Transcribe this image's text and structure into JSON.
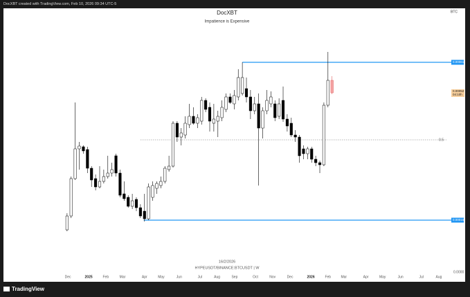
{
  "header": {
    "credit": "DocXBT created with TradingView.com, Feb 10, 2026 09:34 UTC-5",
    "logo": "TradingView"
  },
  "chart_data": {
    "type": "candlestick",
    "title": "DocXBT",
    "subtitle": "Impatience is Expensive",
    "symbol": "BTC",
    "date_note": "16/2/2026",
    "pair": "HYPEUSDT/BINANCE:BTCUSDT | W",
    "x": [
      0,
      1,
      2,
      3,
      4,
      5,
      6,
      7,
      8,
      9,
      10,
      11,
      12,
      13,
      14,
      15,
      16,
      17,
      18,
      19,
      20,
      21,
      22,
      23,
      24,
      25,
      26,
      27,
      28,
      29,
      30,
      31,
      32,
      33,
      34,
      35,
      36,
      37,
      38,
      39,
      40,
      41,
      42,
      43,
      44,
      45,
      46,
      47,
      48,
      49,
      50,
      51,
      52,
      53,
      54,
      55,
      56,
      57,
      58,
      59,
      60,
      61,
      62,
      63,
      64,
      65
    ],
    "open": [
      0.000122,
      0.000162,
      0.00027,
      0.000356,
      0.000362,
      0.000354,
      0.0003,
      0.00027,
      0.000246,
      0.000262,
      0.000276,
      0.000286,
      0.000336,
      0.000286,
      0.000226,
      0.000216,
      0.00019,
      0.00021,
      0.000186,
      0.000176,
      0.000154,
      0.000216,
      0.000242,
      0.00025,
      0.000262,
      0.000296,
      0.000306,
      0.00043,
      0.00039,
      0.000396,
      0.000426,
      0.00045,
      0.00043,
      0.000436,
      0.000496,
      0.000476,
      0.00043,
      0.000436,
      0.000446,
      0.00047,
      0.000506,
      0.000486,
      0.000506,
      0.000516,
      0.00053,
      0.000506,
      0.000466,
      0.000486,
      0.000416,
      0.000466,
      0.000486,
      0.000486,
      0.00045,
      0.000496,
      0.000442,
      0.00043,
      0.000396,
      0.00039,
      0.000356,
      0.000342,
      0.000356,
      0.000326,
      0.000316,
      0.00031,
      0.000482,
      0.000554
    ],
    "close": [
      0.000162,
      0.00027,
      0.000356,
      0.000364,
      0.00035,
      0.0003,
      0.000266,
      0.000246,
      0.000262,
      0.000276,
      0.000286,
      0.000296,
      0.000286,
      0.000222,
      0.000212,
      0.00019,
      0.000206,
      0.000186,
      0.000162,
      0.000154,
      0.000246,
      0.00025,
      0.000256,
      0.000262,
      0.0003,
      0.000306,
      0.00043,
      0.00039,
      0.000402,
      0.00043,
      0.00045,
      0.00043,
      0.000446,
      0.000496,
      0.00047,
      0.000436,
      0.000442,
      0.00045,
      0.000476,
      0.000506,
      0.00049,
      0.00051,
      0.000562,
      0.000562,
      0.000506,
      0.000466,
      0.000486,
      0.000416,
      0.000466,
      0.000496,
      0.000506,
      0.000446,
      0.000486,
      0.000442,
      0.000422,
      0.000396,
      0.00039,
      0.000336,
      0.000342,
      0.000356,
      0.000326,
      0.000316,
      0.00031,
      0.000482,
      0.000554,
      0.000518
    ],
    "high": [
      0.00017,
      0.000276,
      0.00049,
      0.000376,
      0.000366,
      0.000362,
      0.000306,
      0.000282,
      0.000306,
      0.000296,
      0.000336,
      0.000316,
      0.000342,
      0.000296,
      0.000262,
      0.000222,
      0.000226,
      0.000216,
      0.000196,
      0.000226,
      0.000256,
      0.000262,
      0.000262,
      0.000276,
      0.000306,
      0.000336,
      0.000436,
      0.000436,
      0.000416,
      0.00045,
      0.000486,
      0.000476,
      0.000456,
      0.000506,
      0.000502,
      0.00049,
      0.000486,
      0.000466,
      0.000496,
      0.000516,
      0.000516,
      0.000526,
      0.000586,
      0.000606,
      0.000562,
      0.000526,
      0.000506,
      0.000516,
      0.000476,
      0.000526,
      0.000522,
      0.000496,
      0.000502,
      0.000536,
      0.000456,
      0.000446,
      0.00041,
      0.000396,
      0.000366,
      0.000362,
      0.000362,
      0.000336,
      0.000322,
      0.00049,
      0.000636,
      0.000566
    ],
    "low": [
      0.000118,
      0.000156,
      0.000266,
      0.000296,
      0.000342,
      0.000286,
      0.000246,
      0.000236,
      0.000242,
      0.000256,
      0.00027,
      0.000276,
      0.000276,
      0.000216,
      0.000206,
      0.000186,
      0.000182,
      0.000176,
      0.000156,
      0.000146,
      0.00015,
      0.000206,
      0.000226,
      0.000242,
      0.000256,
      0.00029,
      0.000302,
      0.000376,
      0.000366,
      0.000386,
      0.000416,
      0.000426,
      0.000416,
      0.000426,
      0.000462,
      0.000406,
      0.000406,
      0.00039,
      0.000436,
      0.000462,
      0.000486,
      0.00047,
      0.000496,
      0.00051,
      0.00049,
      0.000442,
      0.000456,
      0.00025,
      0.000386,
      0.000456,
      0.000476,
      0.000436,
      0.000442,
      0.000434,
      0.000406,
      0.00039,
      0.000376,
      0.000316,
      0.000326,
      0.000326,
      0.000316,
      0.000306,
      0.000286,
      0.000306,
      0.000476,
      0.000514
    ],
    "up_color": "#ffffff",
    "down_color": "#000000",
    "live_color": "#f4a3a3",
    "last_price_label": "0.00052",
    "countdown": "04:10h",
    "levels": [
      {
        "value": 0.000606,
        "label": "0.00061",
        "color": "#2196f3",
        "x_start": 43,
        "style": "solid"
      },
      {
        "value": 0.00015,
        "label": "0.00015",
        "color": "#2196f3",
        "x_start": 18.8,
        "style": "solid"
      },
      {
        "value": 0.000382,
        "label": "0.5",
        "color": "#9e9e9e",
        "x_start": 18,
        "style": "dotted"
      }
    ],
    "xlim": [
      -15.6,
      93.07
    ],
    "ylim": [
      -2.8e-05,
      0.000762
    ],
    "xticks": [
      {
        "value": 0.2,
        "label": "Dec"
      },
      {
        "value": 5.3,
        "label": "2025"
      },
      {
        "value": 9.5,
        "label": "Feb"
      },
      {
        "value": 13.6,
        "label": "Mar"
      },
      {
        "value": 19,
        "label": "Apr"
      },
      {
        "value": 23.1,
        "label": "May"
      },
      {
        "value": 27.5,
        "label": "Jun"
      },
      {
        "value": 32.6,
        "label": "Jul"
      },
      {
        "value": 36.8,
        "label": "Aug"
      },
      {
        "value": 41.1,
        "label": "Sep"
      },
      {
        "value": 46.2,
        "label": "Oct"
      },
      {
        "value": 50.4,
        "label": "Nov"
      },
      {
        "value": 54.7,
        "label": "Dec"
      },
      {
        "value": 59.8,
        "label": "2026"
      },
      {
        "value": 64,
        "label": "Feb"
      },
      {
        "value": 67.9,
        "label": "Mar"
      },
      {
        "value": 73.3,
        "label": "Apr"
      },
      {
        "value": 77.4,
        "label": "May"
      },
      {
        "value": 81.8,
        "label": "Jun"
      },
      {
        "value": 86.9,
        "label": "Jul"
      },
      {
        "value": 91.2,
        "label": "Aug"
      }
    ],
    "yticks": [
      {
        "value": 0,
        "label": "0.0000"
      }
    ]
  }
}
